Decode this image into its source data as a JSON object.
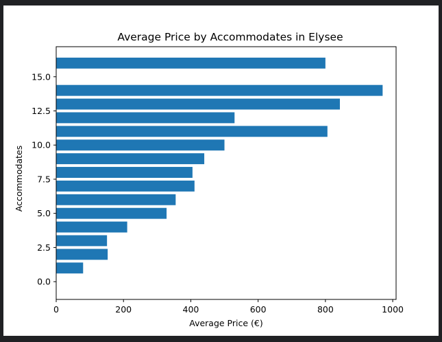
{
  "chart_data": {
    "type": "bar",
    "orientation": "horizontal",
    "title": "Average Price by Accommodates in Elysee",
    "xlabel": "Average Price (€)",
    "ylabel": "Accommodates",
    "categories": [
      1,
      2,
      3,
      4,
      5,
      6,
      7,
      8,
      9,
      10,
      11,
      12,
      13,
      14,
      16
    ],
    "values": [
      80,
      153,
      151,
      211,
      328,
      355,
      411,
      405,
      440,
      500,
      806,
      530,
      843,
      970,
      800
    ],
    "xlim": [
      0,
      1010
    ],
    "ylim": [
      -1.3,
      17.2
    ],
    "xticks": [
      "0",
      "200",
      "400",
      "600",
      "800",
      "1000"
    ],
    "yticks": [
      "0.0",
      "2.5",
      "5.0",
      "7.5",
      "10.0",
      "12.5",
      "15.0"
    ],
    "bar_color": "#1f77b4",
    "grid": false
  }
}
